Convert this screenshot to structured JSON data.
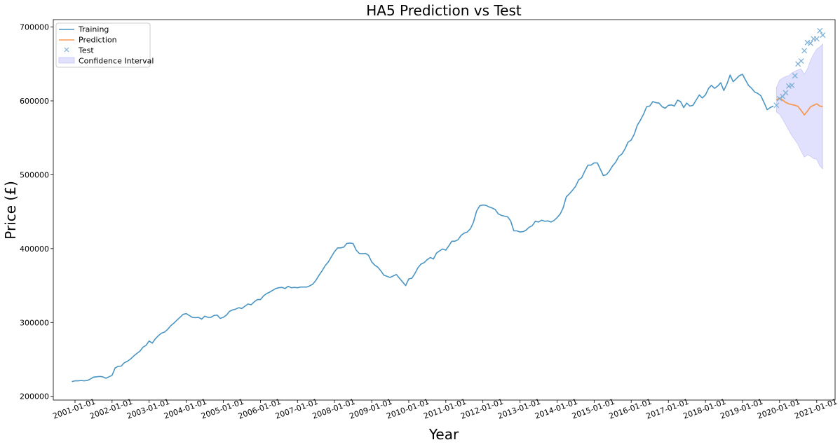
{
  "chart_data": {
    "type": "line",
    "title": "HA5 Prediction vs Test",
    "xlabel": "Year",
    "ylabel": "Price (£)",
    "ylim": [
      195000,
      710000
    ],
    "xlim": [
      "2000-06-01",
      "2021-07-01"
    ],
    "xticks": [
      "2001-01-01",
      "2002-01-01",
      "2003-01-01",
      "2004-01-01",
      "2005-01-01",
      "2006-01-01",
      "2007-01-01",
      "2008-01-01",
      "2009-01-01",
      "2010-01-01",
      "2011-01-01",
      "2012-01-01",
      "2013-01-01",
      "2014-01-01",
      "2015-01-01",
      "2016-01-01",
      "2017-01-01",
      "2018-01-01",
      "2019-01-01",
      "2020-01-01",
      "2021-01-01"
    ],
    "yticks": [
      200000,
      300000,
      400000,
      500000,
      600000,
      700000
    ],
    "grid": false,
    "legend_position": "top-left",
    "legend": [
      "Training",
      "Prediction",
      "Test",
      "Confidence Interval"
    ],
    "colors": {
      "training": "#4b95c3",
      "prediction": "#f59a55",
      "test": "#7fb1d8",
      "confidence": "#c9c9fb"
    },
    "series": [
      {
        "name": "Training",
        "style": "line",
        "x": [
          "2000-12-01",
          "2001-01-01",
          "2001-02-01",
          "2001-03-01",
          "2001-04-01",
          "2001-05-01",
          "2001-06-01",
          "2001-07-01",
          "2001-08-01",
          "2001-09-01",
          "2001-10-01",
          "2001-11-01",
          "2001-12-01",
          "2002-01-01",
          "2002-02-01",
          "2002-03-01",
          "2002-04-01",
          "2002-05-01",
          "2002-06-01",
          "2002-07-01",
          "2002-08-01",
          "2002-09-01",
          "2002-10-01",
          "2002-11-01",
          "2002-12-01",
          "2003-01-01",
          "2003-02-01",
          "2003-03-01",
          "2003-04-01",
          "2003-05-01",
          "2003-06-01",
          "2003-07-01",
          "2003-08-01",
          "2003-09-01",
          "2003-10-01",
          "2003-11-01",
          "2003-12-01",
          "2004-01-01",
          "2004-02-01",
          "2004-03-01",
          "2004-04-01",
          "2004-05-01",
          "2004-06-01",
          "2004-07-01",
          "2004-08-01",
          "2004-09-01",
          "2004-10-01",
          "2004-11-01",
          "2004-12-01",
          "2005-01-01",
          "2005-02-01",
          "2005-03-01",
          "2005-04-01",
          "2005-05-01",
          "2005-06-01",
          "2005-07-01",
          "2005-08-01",
          "2005-09-01",
          "2005-10-01",
          "2005-11-01",
          "2005-12-01",
          "2006-01-01",
          "2006-02-01",
          "2006-03-01",
          "2006-04-01",
          "2006-05-01",
          "2006-06-01",
          "2006-07-01",
          "2006-08-01",
          "2006-09-01",
          "2006-10-01",
          "2006-11-01",
          "2006-12-01",
          "2007-01-01",
          "2007-02-01",
          "2007-03-01",
          "2007-04-01",
          "2007-05-01",
          "2007-06-01",
          "2007-07-01",
          "2007-08-01",
          "2007-09-01",
          "2007-10-01",
          "2007-11-01",
          "2007-12-01",
          "2008-01-01",
          "2008-02-01",
          "2008-03-01",
          "2008-04-01",
          "2008-05-01",
          "2008-06-01",
          "2008-07-01",
          "2008-08-01",
          "2008-09-01",
          "2008-10-01",
          "2008-11-01",
          "2008-12-01",
          "2009-01-01",
          "2009-02-01",
          "2009-03-01",
          "2009-04-01",
          "2009-05-01",
          "2009-06-01",
          "2009-07-01",
          "2009-08-01",
          "2009-09-01",
          "2009-10-01",
          "2009-11-01",
          "2009-12-01",
          "2010-01-01",
          "2010-02-01",
          "2010-03-01",
          "2010-04-01",
          "2010-05-01",
          "2010-06-01",
          "2010-07-01",
          "2010-08-01",
          "2010-09-01",
          "2010-10-01",
          "2010-11-01",
          "2010-12-01",
          "2011-01-01",
          "2011-02-01",
          "2011-03-01",
          "2011-04-01",
          "2011-05-01",
          "2011-06-01",
          "2011-07-01",
          "2011-08-01",
          "2011-09-01",
          "2011-10-01",
          "2011-11-01",
          "2011-12-01",
          "2012-01-01",
          "2012-02-01",
          "2012-03-01",
          "2012-04-01",
          "2012-05-01",
          "2012-06-01",
          "2012-07-01",
          "2012-08-01",
          "2012-09-01",
          "2012-10-01",
          "2012-11-01",
          "2012-12-01",
          "2013-01-01",
          "2013-02-01",
          "2013-03-01",
          "2013-04-01",
          "2013-05-01",
          "2013-06-01",
          "2013-07-01",
          "2013-08-01",
          "2013-09-01",
          "2013-10-01",
          "2013-11-01",
          "2013-12-01",
          "2014-01-01",
          "2014-02-01",
          "2014-03-01",
          "2014-04-01",
          "2014-05-01",
          "2014-06-01",
          "2014-07-01",
          "2014-08-01",
          "2014-09-01",
          "2014-10-01",
          "2014-11-01",
          "2014-12-01",
          "2015-01-01",
          "2015-02-01",
          "2015-03-01",
          "2015-04-01",
          "2015-05-01",
          "2015-06-01",
          "2015-07-01",
          "2015-08-01",
          "2015-09-01",
          "2015-10-01",
          "2015-11-01",
          "2015-12-01",
          "2016-01-01",
          "2016-02-01",
          "2016-03-01",
          "2016-04-01",
          "2016-05-01",
          "2016-06-01",
          "2016-07-01",
          "2016-08-01",
          "2016-09-01",
          "2016-10-01",
          "2016-11-01",
          "2016-12-01",
          "2017-01-01",
          "2017-02-01",
          "2017-03-01",
          "2017-04-01",
          "2017-05-01",
          "2017-06-01",
          "2017-07-01",
          "2017-08-01",
          "2017-09-01",
          "2017-10-01",
          "2017-11-01",
          "2017-12-01",
          "2018-01-01",
          "2018-02-01",
          "2018-03-01",
          "2018-04-01",
          "2018-05-01",
          "2018-06-01",
          "2018-07-01",
          "2018-08-01",
          "2018-09-01",
          "2018-10-01",
          "2018-11-01",
          "2018-12-01",
          "2019-01-01",
          "2019-02-01",
          "2019-03-01",
          "2019-04-01",
          "2019-05-01",
          "2019-06-01",
          "2019-07-01",
          "2019-08-01",
          "2019-09-01",
          "2019-10-01",
          "2019-11-01"
        ],
        "values": [
          220000,
          221000,
          221000,
          221500,
          221000,
          221500,
          223500,
          226000,
          226500,
          227000,
          226500,
          224500,
          226500,
          228500,
          238500,
          240500,
          241000,
          245500,
          247500,
          250500,
          254500,
          258000,
          261000,
          266500,
          269000,
          275000,
          272000,
          277500,
          282000,
          285500,
          287000,
          290500,
          295500,
          299000,
          303000,
          307000,
          311000,
          312000,
          309500,
          307000,
          306500,
          307000,
          304500,
          308500,
          307000,
          307000,
          309500,
          310000,
          305500,
          307000,
          310000,
          315000,
          317000,
          318000,
          320000,
          319000,
          322000,
          325000,
          324000,
          328000,
          331000,
          331000,
          336000,
          339000,
          341000,
          343500,
          346000,
          347000,
          347500,
          346000,
          349000,
          347000,
          347500,
          347000,
          348000,
          348000,
          348000,
          349500,
          352000,
          357000,
          364000,
          370000,
          377000,
          382000,
          389000,
          396000,
          401000,
          401000,
          402000,
          407000,
          407500,
          407000,
          398000,
          393500,
          393000,
          393500,
          391000,
          382000,
          377500,
          375000,
          370000,
          364000,
          362500,
          361000,
          363000,
          365000,
          360000,
          355000,
          350000,
          359000,
          360000,
          366000,
          374000,
          379000,
          381000,
          385000,
          388000,
          386000,
          394000,
          397000,
          399500,
          398000,
          404000,
          410000,
          410000,
          412000,
          418000,
          421000,
          422500,
          427000,
          436000,
          451000,
          458000,
          459000,
          458500,
          456500,
          455000,
          453000,
          447000,
          445000,
          444000,
          443000,
          437500,
          424000,
          424000,
          422500,
          423000,
          425000,
          429000,
          431000,
          437000,
          436000,
          438500,
          437000,
          437500,
          436000,
          438000,
          442000,
          447000,
          455000,
          470000,
          474000,
          479000,
          484000,
          493000,
          496000,
          505000,
          513000,
          513000,
          516000,
          516000,
          508000,
          499000,
          500000,
          505000,
          512000,
          517000,
          525000,
          528000,
          535000,
          544000,
          547000,
          555000,
          567000,
          574000,
          582000,
          592000,
          593000,
          599000,
          597500,
          597000,
          592000,
          590000,
          594000,
          594500,
          593000,
          601000,
          599000,
          591000,
          597000,
          593000,
          594000,
          601000,
          608000,
          604000,
          608000,
          617000,
          621000,
          617000,
          620000,
          624500,
          614000,
          623000,
          635000,
          626000,
          630000,
          634000,
          636000,
          628000,
          621000,
          617000,
          612000,
          610000,
          607000,
          598000,
          588000,
          591000,
          593000
        ]
      },
      {
        "name": "Prediction",
        "style": "line",
        "x": [
          "2019-12-01",
          "2020-01-01",
          "2020-02-01",
          "2020-03-01",
          "2020-04-01",
          "2020-05-01",
          "2020-06-01",
          "2020-07-01",
          "2020-08-01",
          "2020-09-01",
          "2020-10-01",
          "2020-11-01",
          "2020-12-01",
          "2021-01-01",
          "2021-02-01",
          "2021-03-01"
        ],
        "values": [
          601000,
          604000,
          601000,
          598000,
          596000,
          595000,
          594000,
          592500,
          587000,
          581000,
          586000,
          592000,
          594000,
          596000,
          593000,
          592000
        ]
      },
      {
        "name": "Test",
        "style": "scatter",
        "x": [
          "2019-12-01",
          "2020-01-01",
          "2020-02-01",
          "2020-03-01",
          "2020-04-01",
          "2020-05-01",
          "2020-06-01",
          "2020-07-01",
          "2020-08-01",
          "2020-09-01",
          "2020-10-01",
          "2020-11-01",
          "2020-12-01",
          "2021-01-01",
          "2021-02-01",
          "2021-03-01"
        ],
        "values": [
          594000,
          603000,
          606000,
          611000,
          620000,
          621000,
          634000,
          650000,
          654000,
          668000,
          679000,
          678000,
          684000,
          684000,
          695000,
          689000
        ]
      },
      {
        "name": "Confidence Interval",
        "style": "band",
        "x": [
          "2019-12-01",
          "2020-01-01",
          "2020-02-01",
          "2020-03-01",
          "2020-04-01",
          "2020-05-01",
          "2020-06-01",
          "2020-07-01",
          "2020-08-01",
          "2020-09-01",
          "2020-10-01",
          "2020-11-01",
          "2020-12-01",
          "2021-01-01",
          "2021-02-01",
          "2021-03-01"
        ],
        "lower": [
          585000,
          582000,
          575000,
          568000,
          560000,
          553000,
          547000,
          541000,
          532000,
          524000,
          527000,
          525000,
          522000,
          521000,
          512000,
          508000
        ],
        "upper": [
          618000,
          628000,
          631000,
          633000,
          634000,
          638000,
          640000,
          642000,
          643000,
          636000,
          643000,
          655000,
          663000,
          670000,
          673000,
          677000
        ]
      }
    ]
  }
}
